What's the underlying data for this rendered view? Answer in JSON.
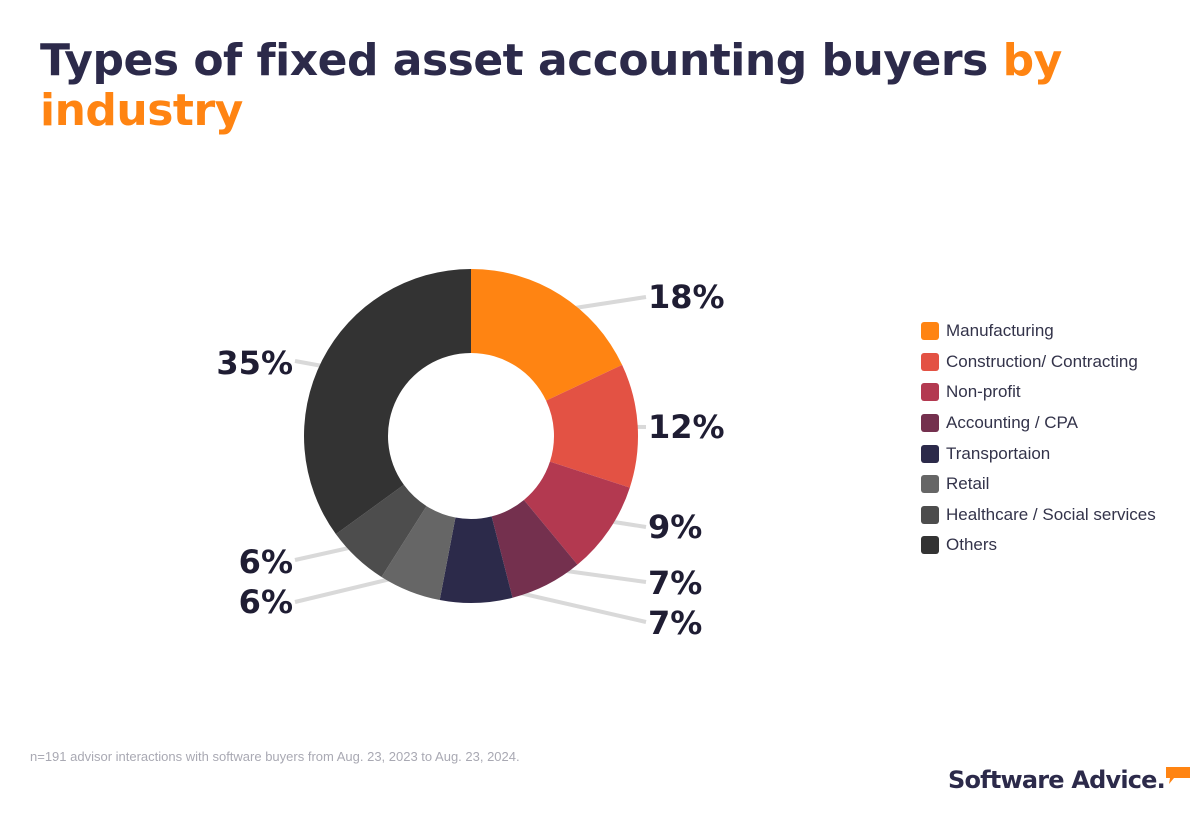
{
  "title": {
    "main": "Types of fixed asset accounting buyers",
    "accent": "by industry"
  },
  "chart_data": {
    "type": "pie",
    "categories": [
      "Manufacturing",
      "Construction/ Contracting",
      "Non-profit",
      "Accounting / CPA",
      "Transportaion",
      "Retail",
      "Healthcare / Social services",
      "Others"
    ],
    "values": [
      18,
      12,
      9,
      7,
      7,
      6,
      6,
      35
    ],
    "labels": [
      "18%",
      "12%",
      "9%",
      "7%",
      "7%",
      "6%",
      "6%",
      "35%"
    ],
    "colors": [
      "#ff8412",
      "#e35244",
      "#b33950",
      "#74304e",
      "#2c2a4a",
      "#666666",
      "#4d4d4d",
      "#333333"
    ],
    "title": "Types of fixed asset accounting buyers by industry",
    "legend_position": "right",
    "donut": true
  },
  "footnote": "n=191 advisor interactions with software buyers from Aug. 23, 2023 to Aug. 23, 2024.",
  "brand": {
    "name": "Software Advice.",
    "accent_color": "#ff8412",
    "icon": "speech-bubble-icon"
  }
}
